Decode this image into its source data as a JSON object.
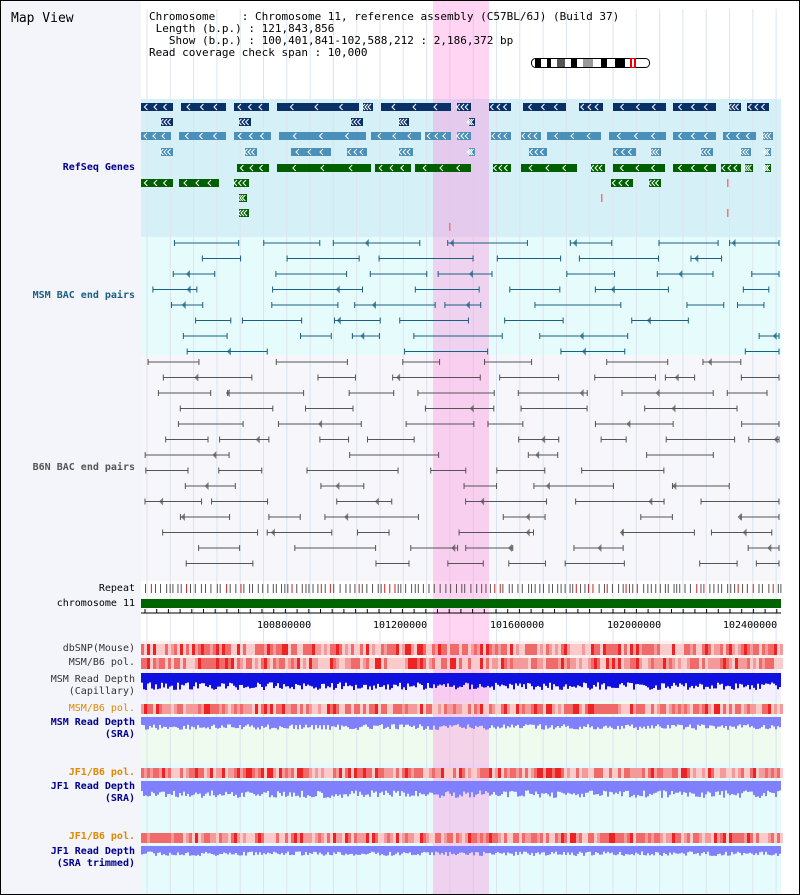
{
  "header": {
    "title": "Map View",
    "chromosome_line": "Chromosome    : Chromosome 11, reference assembly (C57BL/6J) (Build 37)",
    "length_line": " Length (b.p.) : 121,843,856",
    "show_line": "   Show (b.p.) : 100,401,841-102,588,212 : 2,186,372 bp",
    "coverage_line": "Read coverage check span : 10,000"
  },
  "tracks": {
    "refseq": "RefSeq Genes",
    "msm_bac": "MSM BAC end pairs",
    "b6n_bac": "B6N BAC end pairs",
    "repeat": "Repeat",
    "chromosome": "chromosome 11",
    "dbsnp": "dbSNP(Mouse)",
    "msm_b6_pol_1": "MSM/B6 pol.",
    "msm_read_depth_cap_1": "MSM Read Depth",
    "msm_read_depth_cap_2": "(Capillary)",
    "msm_b6_pol_2": "MSM/B6 pol.",
    "msm_read_depth_sra_1": "MSM Read Depth",
    "msm_read_depth_sra_2": "(SRA)",
    "jf1_b6_pol_1": "JF1/B6 pol.",
    "jf1_read_depth_sra_1": "JF1 Read Depth",
    "jf1_read_depth_sra_2": "(SRA)",
    "jf1_b6_pol_2": "JF1/B6 pol.",
    "jf1_read_depth_trim_1": "JF1 Read Depth",
    "jf1_read_depth_trim_2": "(SRA trimmed)"
  },
  "axis": {
    "ticks": [
      "100800000",
      "101200000",
      "101600000",
      "102000000",
      "102400000"
    ]
  },
  "colors": {
    "refseq_dark": "#0a3068",
    "refseq_mid": "#4a90b8",
    "refseq_green": "#006000",
    "msm_line": "#1a6080",
    "b6n_line": "#555555",
    "highlight": "#ff88dd",
    "label_navy": "#00008b",
    "label_orange": "#e08800",
    "depth_capillary": "#1010e0",
    "depth_sra": "#8080ff",
    "pol_red": "#ee3333"
  }
}
